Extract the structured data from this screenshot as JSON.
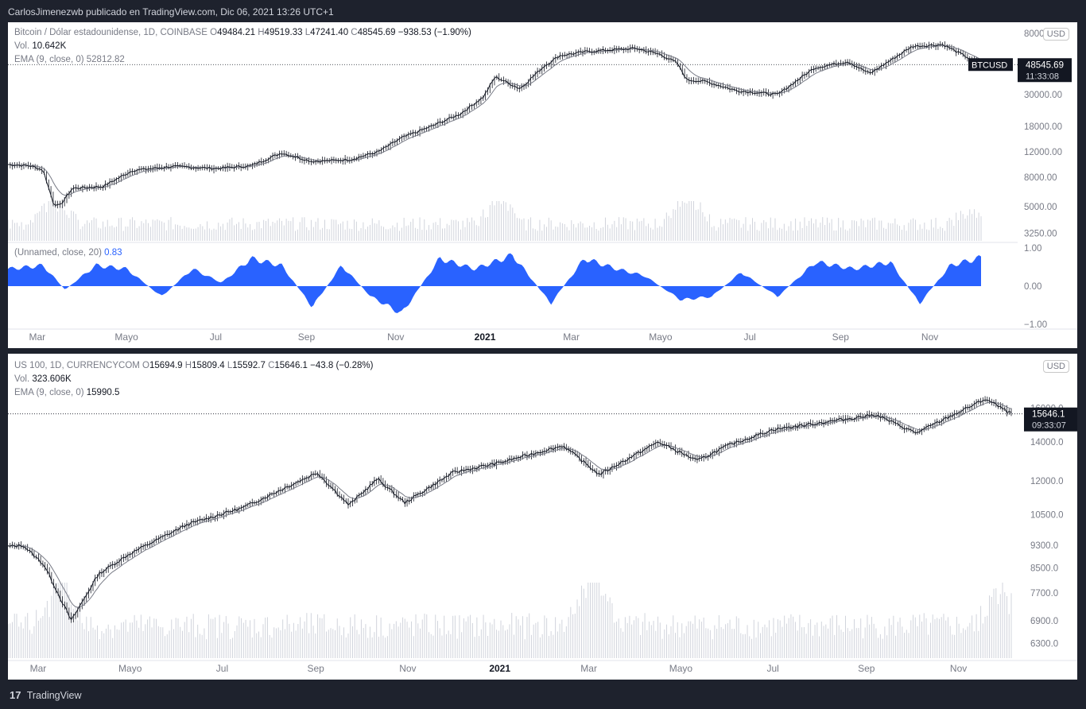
{
  "header": {
    "publisher": "CarlosJimenezwb publicado en TradingView.com, Dic 06, 2021 13:26 UTC+1"
  },
  "footer": {
    "brand_icon": "tradingview-logo-icon",
    "brand": "TradingView"
  },
  "chart_data": [
    {
      "type": "line",
      "title": "Bitcoin / Dólar estadounidense, 1D, COINBASE",
      "ohlc": {
        "O": "49484.21",
        "H": "49519.33",
        "L": "47241.40",
        "C": "48545.69",
        "change": "−938.53 (−1.90%)"
      },
      "volume_label": "Vol.",
      "volume_value": "10.642K",
      "ema_label": "EMA (9, close, 0)",
      "ema_value": "52812.82",
      "oscillator_label": "(Unnamed, close, 20)",
      "oscillator_value": "0.83",
      "oscillator_color": "#2962ff",
      "currency": "USD",
      "symbol_tag": "BTCUSD",
      "last_price": "48545.69",
      "countdown": "11:33:08",
      "y_scale": "log",
      "ylim": [
        3000,
        80000
      ],
      "price_ticks": [
        "80000.00",
        "30000.00",
        "18000.00",
        "12000.00",
        "8000.00",
        "5000.00",
        "3250.00"
      ],
      "osc_ticks": [
        "1.00",
        "0.00",
        "−1.00"
      ],
      "x_tick_labels": [
        "Mar",
        "Mayo",
        "Jul",
        "Sep",
        "Nov",
        "2021",
        "Mar",
        "Mayo",
        "Jul",
        "Sep",
        "Nov"
      ],
      "x_ticks_bold": [
        false,
        false,
        false,
        false,
        false,
        true,
        false,
        false,
        false,
        false,
        false
      ],
      "x_tick_dates": [
        "2020-03",
        "2020-05",
        "2020-07",
        "2020-09",
        "2020-11",
        "2021-01",
        "2021-03",
        "2021-05",
        "2021-07",
        "2021-09",
        "2021-11"
      ],
      "x_range": [
        "2020-02-10",
        "2021-12-06"
      ],
      "price_series": {
        "name": "Close",
        "x": [
          "2020-02-10",
          "2020-02-25",
          "2020-03-05",
          "2020-03-12",
          "2020-03-16",
          "2020-03-25",
          "2020-04-15",
          "2020-05-05",
          "2020-06-01",
          "2020-07-01",
          "2020-07-25",
          "2020-08-15",
          "2020-09-05",
          "2020-10-01",
          "2020-10-20",
          "2020-11-05",
          "2020-11-25",
          "2020-12-15",
          "2020-12-31",
          "2021-01-08",
          "2021-01-25",
          "2021-02-10",
          "2021-02-21",
          "2021-03-13",
          "2021-04-14",
          "2021-05-01",
          "2021-05-12",
          "2021-05-19",
          "2021-06-01",
          "2021-06-22",
          "2021-07-20",
          "2021-08-14",
          "2021-09-06",
          "2021-09-21",
          "2021-10-20",
          "2021-11-10",
          "2021-12-06"
        ],
        "values": [
          9800,
          9600,
          9000,
          5300,
          5000,
          6700,
          6900,
          8900,
          9500,
          9200,
          9600,
          11800,
          10300,
          10600,
          12000,
          15000,
          18000,
          22000,
          29000,
          40000,
          33000,
          47000,
          56000,
          60000,
          63000,
          57000,
          50000,
          38000,
          37000,
          32000,
          30000,
          46000,
          51000,
          42000,
          65000,
          67000,
          48545
        ]
      },
      "ema_series_color": "#787b86",
      "volume_series": {
        "x": [
          "2020-03-12",
          "2021-01-11",
          "2021-05-19",
          "2021-11-30"
        ],
        "values": [
          250,
          200,
          240,
          100
        ]
      },
      "oscillator_series": {
        "x": [
          "2020-02-10",
          "2020-03-05",
          "2020-03-20",
          "2020-04-10",
          "2020-05-01",
          "2020-05-25",
          "2020-06-15",
          "2020-07-05",
          "2020-07-25",
          "2020-08-15",
          "2020-09-05",
          "2020-09-25",
          "2020-10-15",
          "2020-11-05",
          "2020-12-01",
          "2020-12-25",
          "2021-01-20",
          "2021-02-15",
          "2021-03-10",
          "2021-04-01",
          "2021-04-20",
          "2021-05-15",
          "2021-06-05",
          "2021-06-25",
          "2021-07-20",
          "2021-08-15",
          "2021-09-10",
          "2021-10-05",
          "2021-10-25",
          "2021-11-15",
          "2021-12-06"
        ],
        "values": [
          0.5,
          0.6,
          -0.1,
          0.6,
          0.5,
          -0.3,
          0.5,
          0.1,
          0.8,
          0.6,
          -0.6,
          0.6,
          -0.3,
          -0.8,
          0.8,
          0.5,
          0.9,
          -0.5,
          0.8,
          0.5,
          0.3,
          -0.4,
          -0.3,
          0.4,
          -0.3,
          0.7,
          0.5,
          0.7,
          -0.5,
          0.6,
          0.83
        ]
      }
    },
    {
      "type": "line",
      "title": "US 100, 1D, CURRENCYCOM",
      "ohlc": {
        "O": "15694.9",
        "H": "15809.4",
        "L": "15592.7",
        "C": "15646.1",
        "change": "−43.8 (−0.28%)"
      },
      "volume_label": "Vol.",
      "volume_value": "323.606K",
      "ema_label": "EMA (9, close, 0)",
      "ema_value": "15990.5",
      "currency": "USD",
      "last_price": "15646.1",
      "countdown": "09:33:07",
      "y_scale": "log",
      "ylim": [
        6100,
        19000
      ],
      "price_ticks": [
        "16000.0",
        "14000.0",
        "12000.0",
        "10500.0",
        "9300.0",
        "8500.0",
        "7700.0",
        "6900.0",
        "6300.0"
      ],
      "x_tick_labels": [
        "Mar",
        "Mayo",
        "Jul",
        "Sep",
        "Nov",
        "2021",
        "Mar",
        "Mayo",
        "Jul",
        "Sep",
        "Nov"
      ],
      "x_ticks_bold": [
        false,
        false,
        false,
        false,
        false,
        true,
        false,
        false,
        false,
        false,
        false
      ],
      "x_tick_dates": [
        "2020-03",
        "2020-05",
        "2020-07",
        "2020-09",
        "2020-11",
        "2021-01",
        "2021-03",
        "2021-05",
        "2021-07",
        "2021-09",
        "2021-11"
      ],
      "x_range": [
        "2020-02-10",
        "2021-12-06"
      ],
      "price_series": {
        "name": "Close",
        "x": [
          "2020-02-10",
          "2020-02-20",
          "2020-03-05",
          "2020-03-23",
          "2020-04-10",
          "2020-05-01",
          "2020-06-08",
          "2020-07-15",
          "2020-09-02",
          "2020-09-23",
          "2020-10-12",
          "2020-10-30",
          "2020-12-01",
          "2021-01-01",
          "2021-02-12",
          "2021-03-08",
          "2021-04-16",
          "2021-05-12",
          "2021-06-01",
          "2021-07-01",
          "2021-08-01",
          "2021-09-07",
          "2021-10-04",
          "2021-11-19",
          "2021-12-06"
        ],
        "values": [
          9250,
          9300,
          8600,
          6900,
          8300,
          9000,
          10100,
          10800,
          12400,
          10900,
          12100,
          11000,
          12400,
          12900,
          13800,
          12300,
          14000,
          13000,
          13800,
          14700,
          15100,
          15600,
          14500,
          16600,
          15646
        ]
      },
      "ema_series_color": "#787b86",
      "volume_series": {
        "x": [
          "2020-03-16",
          "2021-03-04",
          "2021-11-30"
        ],
        "values": [
          700,
          900,
          600
        ]
      }
    }
  ]
}
